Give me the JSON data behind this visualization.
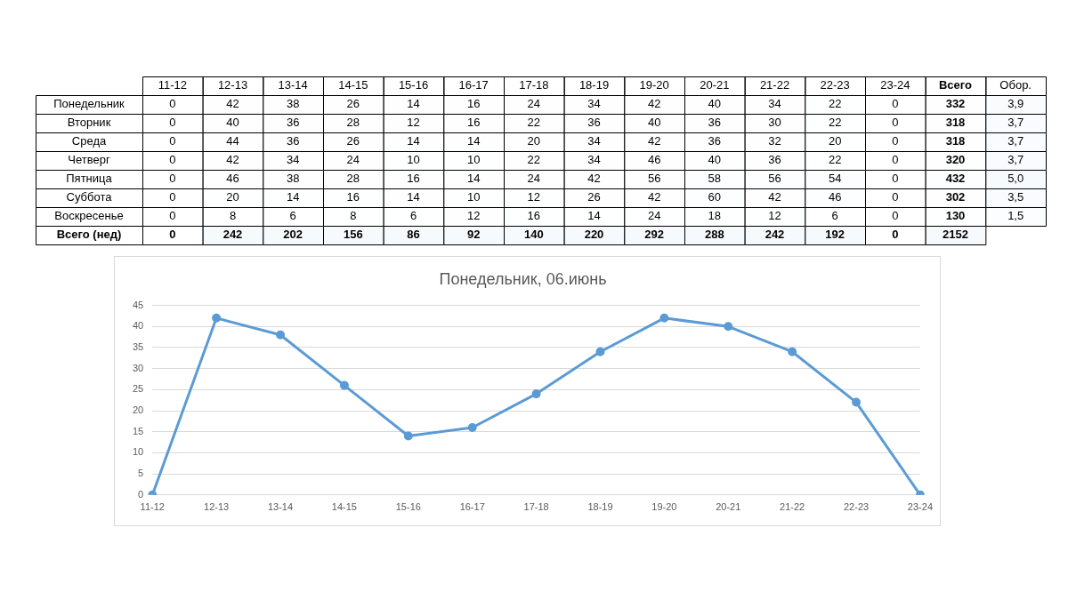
{
  "chart_data": [
    {
      "type": "heatmap",
      "categories": [
        "11-12",
        "12-13",
        "13-14",
        "14-15",
        "15-16",
        "16-17",
        "17-18",
        "18-19",
        "19-20",
        "20-21",
        "21-22",
        "22-23",
        "23-24",
        "Всего",
        "Обор."
      ],
      "y_categories": [
        "Понедельник",
        "Вторник",
        "Среда",
        "Четверг",
        "Пятница",
        "Суббота",
        "Воскресенье",
        "Всего (нед)"
      ],
      "cells": [
        [
          0,
          42,
          38,
          26,
          14,
          16,
          24,
          34,
          42,
          40,
          34,
          22,
          0,
          332,
          3.9
        ],
        [
          0,
          40,
          36,
          28,
          12,
          16,
          22,
          36,
          40,
          36,
          30,
          22,
          0,
          318,
          3.7
        ],
        [
          0,
          44,
          36,
          26,
          14,
          14,
          20,
          34,
          42,
          36,
          32,
          20,
          0,
          318,
          3.7
        ],
        [
          0,
          42,
          34,
          24,
          10,
          10,
          22,
          34,
          46,
          40,
          36,
          22,
          0,
          320,
          3.7
        ],
        [
          0,
          46,
          38,
          28,
          16,
          14,
          24,
          42,
          56,
          58,
          56,
          54,
          0,
          432,
          5.0
        ],
        [
          0,
          20,
          14,
          16,
          14,
          10,
          12,
          26,
          42,
          60,
          42,
          46,
          0,
          302,
          3.5
        ],
        [
          0,
          8,
          6,
          8,
          6,
          12,
          16,
          14,
          24,
          18,
          12,
          6,
          0,
          130,
          1.5
        ],
        [
          0,
          242,
          202,
          156,
          86,
          92,
          140,
          220,
          292,
          288,
          242,
          192,
          0,
          2152,
          null
        ]
      ],
      "cell_labels": [
        [
          "0",
          "42",
          "38",
          "26",
          "14",
          "16",
          "24",
          "34",
          "42",
          "40",
          "34",
          "22",
          "0",
          "332",
          "3,9"
        ],
        [
          "0",
          "40",
          "36",
          "28",
          "12",
          "16",
          "22",
          "36",
          "40",
          "36",
          "30",
          "22",
          "0",
          "318",
          "3,7"
        ],
        [
          "0",
          "44",
          "36",
          "26",
          "14",
          "14",
          "20",
          "34",
          "42",
          "36",
          "32",
          "20",
          "0",
          "318",
          "3,7"
        ],
        [
          "0",
          "42",
          "34",
          "24",
          "10",
          "10",
          "22",
          "34",
          "46",
          "40",
          "36",
          "22",
          "0",
          "320",
          "3,7"
        ],
        [
          "0",
          "46",
          "38",
          "28",
          "16",
          "14",
          "24",
          "42",
          "56",
          "58",
          "56",
          "54",
          "0",
          "432",
          "5,0"
        ],
        [
          "0",
          "20",
          "14",
          "16",
          "14",
          "10",
          "12",
          "26",
          "42",
          "60",
          "42",
          "46",
          "0",
          "302",
          "3,5"
        ],
        [
          "0",
          "8",
          "6",
          "8",
          "6",
          "12",
          "16",
          "14",
          "24",
          "18",
          "12",
          "6",
          "0",
          "130",
          "1,5"
        ],
        [
          "0",
          "242",
          "202",
          "156",
          "86",
          "92",
          "140",
          "220",
          "292",
          "288",
          "242",
          "192",
          "0",
          "2152",
          null
        ]
      ]
    },
    {
      "type": "line",
      "title": "Понедельник, 06.июнь",
      "categories": [
        "11-12",
        "12-13",
        "13-14",
        "14-15",
        "15-16",
        "16-17",
        "17-18",
        "18-19",
        "19-20",
        "20-21",
        "21-22",
        "22-23",
        "23-24"
      ],
      "values": [
        0,
        42,
        38,
        26,
        14,
        16,
        24,
        34,
        42,
        40,
        34,
        22,
        0
      ],
      "color": "#5b9bd5",
      "ylim": [
        0,
        45
      ],
      "yticks": [
        0,
        5,
        10,
        15,
        20,
        25,
        30,
        35,
        40,
        45
      ],
      "grid": "y",
      "legend": false,
      "marker": "circle",
      "line_style": "solid"
    }
  ]
}
